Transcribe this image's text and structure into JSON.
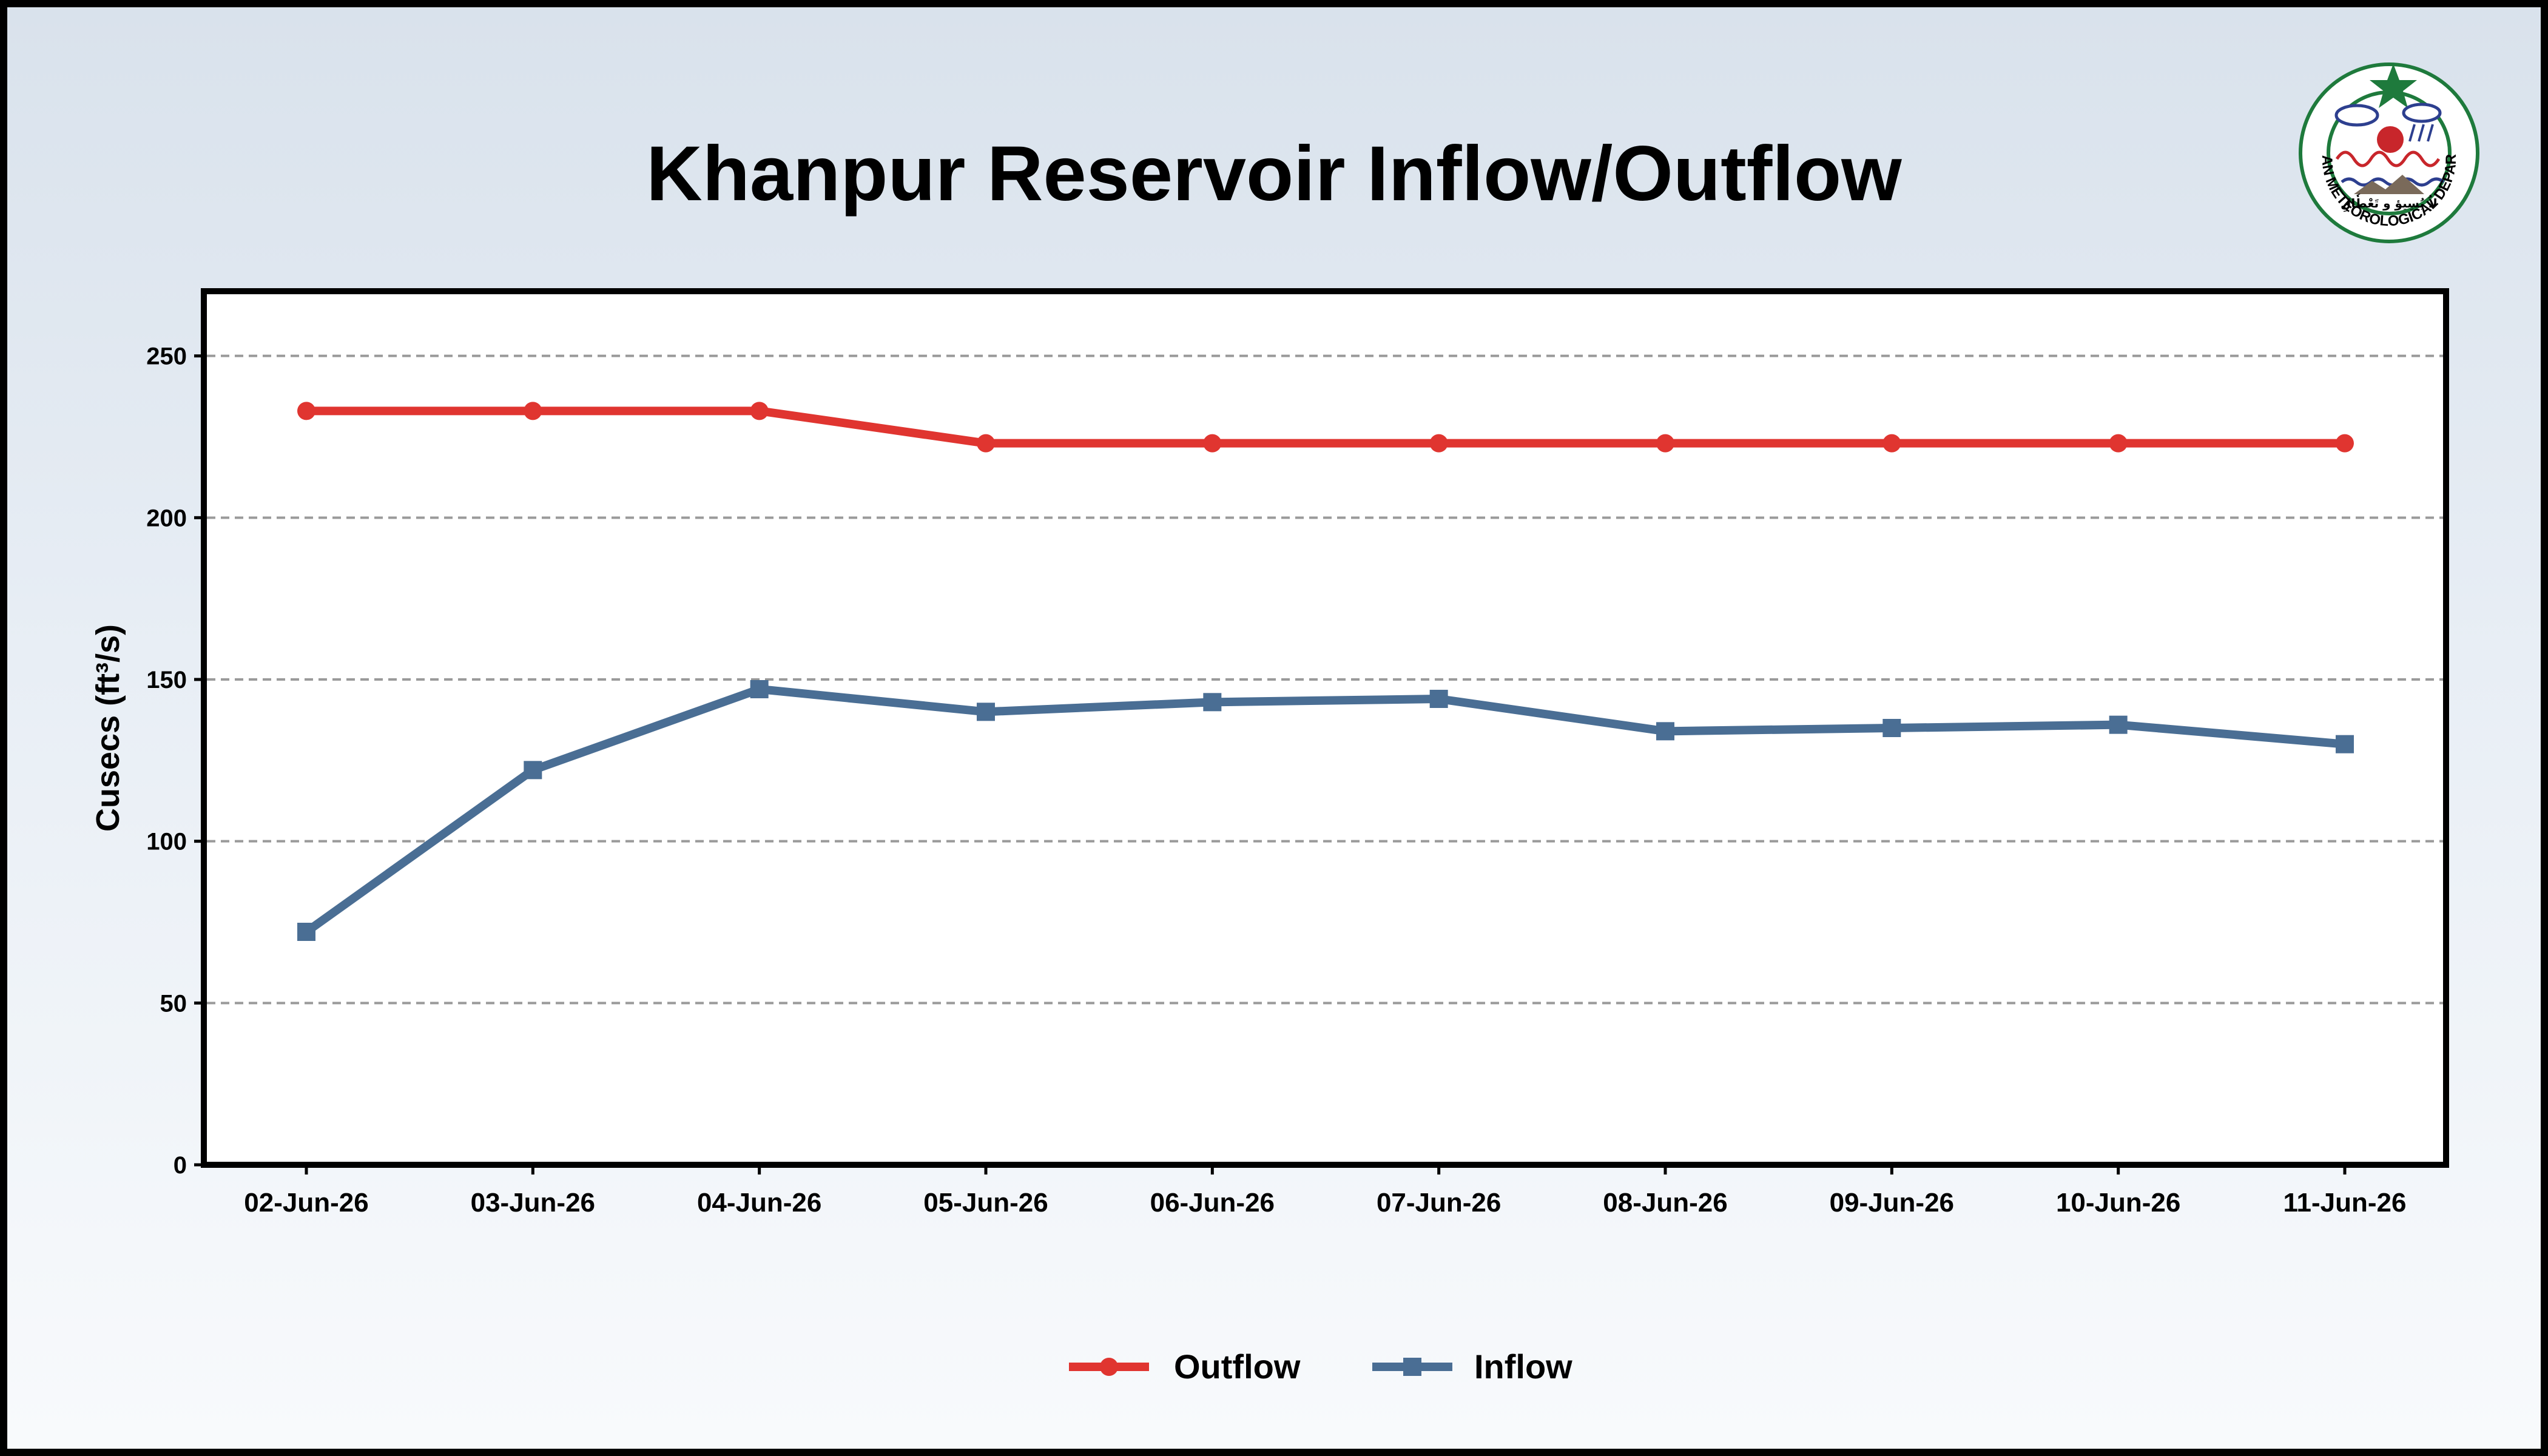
{
  "logo": {
    "text": "PAKISTAN METEOROLOGICAL DEPARTMENT",
    "urdu_text": "لاُ یُسِیؤ و تَعْطٗالِ"
  },
  "colors": {
    "outflow": "#e03530",
    "inflow": "#4a6e94",
    "grid": "#9a9a9a",
    "logo_green": "#1e7a3c"
  },
  "chart_data": {
    "type": "line",
    "title": "Khanpur Reservoir Inflow/Outflow",
    "ylabel": "Cusecs (ft³/s)",
    "xlabel": "",
    "ylim": [
      0,
      270
    ],
    "yticks": [
      0,
      50,
      100,
      150,
      200,
      250
    ],
    "grid": true,
    "legend": "bottom-center",
    "categories": [
      "02-Jun-26",
      "03-Jun-26",
      "04-Jun-26",
      "05-Jun-26",
      "06-Jun-26",
      "07-Jun-26",
      "08-Jun-26",
      "09-Jun-26",
      "10-Jun-26",
      "11-Jun-26"
    ],
    "series": [
      {
        "name": "Outflow",
        "marker": "circle",
        "values": [
          233,
          233,
          233,
          223,
          223,
          223,
          223,
          223,
          223,
          223
        ]
      },
      {
        "name": "Inflow",
        "marker": "square",
        "values": [
          72,
          122,
          147,
          140,
          143,
          144,
          134,
          135,
          136,
          130
        ]
      }
    ]
  }
}
